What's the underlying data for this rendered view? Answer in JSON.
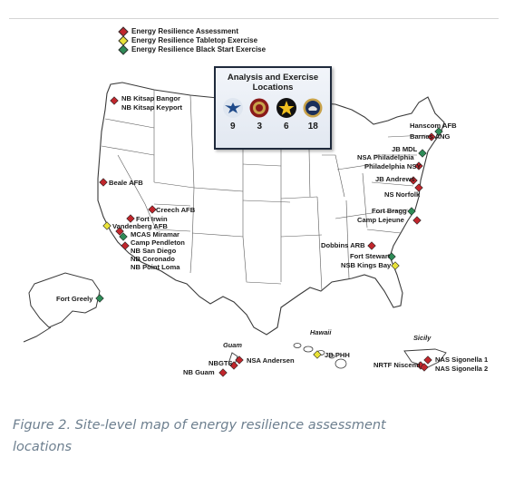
{
  "colors": {
    "assessment": "#c0262c",
    "tabletop": "#e9e238",
    "blackstart": "#2e8b57",
    "caption": "#6d7f8f"
  },
  "legend": {
    "items": [
      {
        "label": "Energy Resilience Assessment",
        "type": "assessment"
      },
      {
        "label": "Energy Resilience Tabletop Exercise",
        "type": "tabletop"
      },
      {
        "label": "Energy Resilience Black Start Exercise",
        "type": "blackstart"
      }
    ]
  },
  "panel": {
    "title_line1": "Analysis and Exercise",
    "title_line2": "Locations",
    "branches": [
      {
        "icon": "air-force-emblem-icon",
        "count": "9"
      },
      {
        "icon": "marine-corps-seal-icon",
        "count": "3"
      },
      {
        "icon": "army-star-icon",
        "count": "6"
      },
      {
        "icon": "navy-seal-icon",
        "count": "18"
      }
    ]
  },
  "region_labels": {
    "guam": "Guam",
    "hawaii": "Hawaii",
    "sicily": "Sicily"
  },
  "sites": [
    {
      "name": "NB Kitsap Bangor",
      "type": "assessment"
    },
    {
      "name": "NB Kitsap Keyport",
      "type": "assessment"
    },
    {
      "name": "Beale AFB",
      "type": "assessment"
    },
    {
      "name": "Creech AFB",
      "type": "assessment"
    },
    {
      "name": "Fort Irwin",
      "type": "assessment"
    },
    {
      "name": "Vandenberg AFB",
      "type": "tabletop"
    },
    {
      "name": "MCAS Miramar",
      "type": "blackstart"
    },
    {
      "name": "Camp Pendleton",
      "type": "assessment"
    },
    {
      "name": "NB San Diego",
      "type": "assessment"
    },
    {
      "name": "NB Coronado",
      "type": "assessment"
    },
    {
      "name": "NB Point Loma",
      "type": "assessment"
    },
    {
      "name": "Fort Greely",
      "type": "blackstart"
    },
    {
      "name": "Hanscom AFB",
      "type": "blackstart"
    },
    {
      "name": "Barnes ANG",
      "type": "assessment"
    },
    {
      "name": "JB MDL",
      "type": "blackstart"
    },
    {
      "name": "NSA Philadelphia",
      "type": "assessment"
    },
    {
      "name": "Philadelphia NSY",
      "type": "assessment"
    },
    {
      "name": "JB Andrews",
      "type": "assessment"
    },
    {
      "name": "NS Norfolk",
      "type": "assessment"
    },
    {
      "name": "Fort Bragg",
      "type": "blackstart"
    },
    {
      "name": "Camp Lejeune",
      "type": "assessment"
    },
    {
      "name": "Dobbins ARB",
      "type": "assessment"
    },
    {
      "name": "Fort Stewart",
      "type": "blackstart"
    },
    {
      "name": "NSB Kings Bay",
      "type": "tabletop"
    },
    {
      "name": "NSA Andersen",
      "type": "assessment"
    },
    {
      "name": "NBGTS",
      "type": "assessment"
    },
    {
      "name": "NB Guam",
      "type": "assessment"
    },
    {
      "name": "JB PHH",
      "type": "tabletop"
    },
    {
      "name": "NRTF Niscemi",
      "type": "assessment"
    },
    {
      "name": "NAS Sigonella 1",
      "type": "assessment"
    },
    {
      "name": "NAS Sigonella 2",
      "type": "assessment"
    }
  ],
  "caption": {
    "line1": "Figure 2. Site-level map of energy resilience assessment",
    "line2": "locations"
  }
}
